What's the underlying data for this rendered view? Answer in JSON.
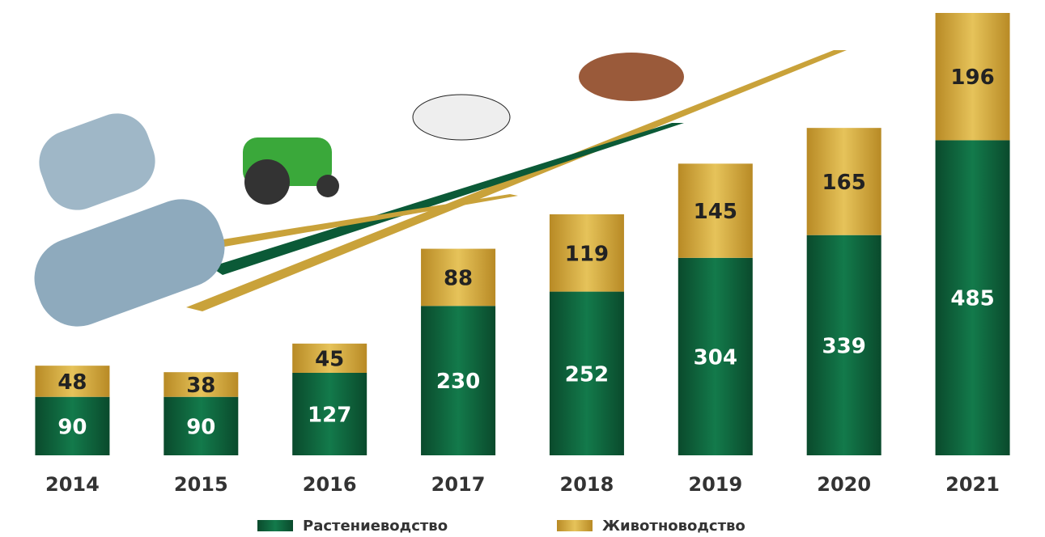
{
  "chart_data": {
    "type": "bar",
    "stacked": true,
    "categories": [
      "2014",
      "2015",
      "2016",
      "2017",
      "2018",
      "2019",
      "2020",
      "2021"
    ],
    "series": [
      {
        "name": "Растениеводство",
        "color": "#0b5a37",
        "values": [
          90,
          90,
          127,
          230,
          252,
          304,
          339,
          485
        ]
      },
      {
        "name": "Животноводство",
        "color": "#c9a23a",
        "values": [
          48,
          38,
          45,
          88,
          119,
          145,
          165,
          196
        ]
      }
    ]
  }
}
